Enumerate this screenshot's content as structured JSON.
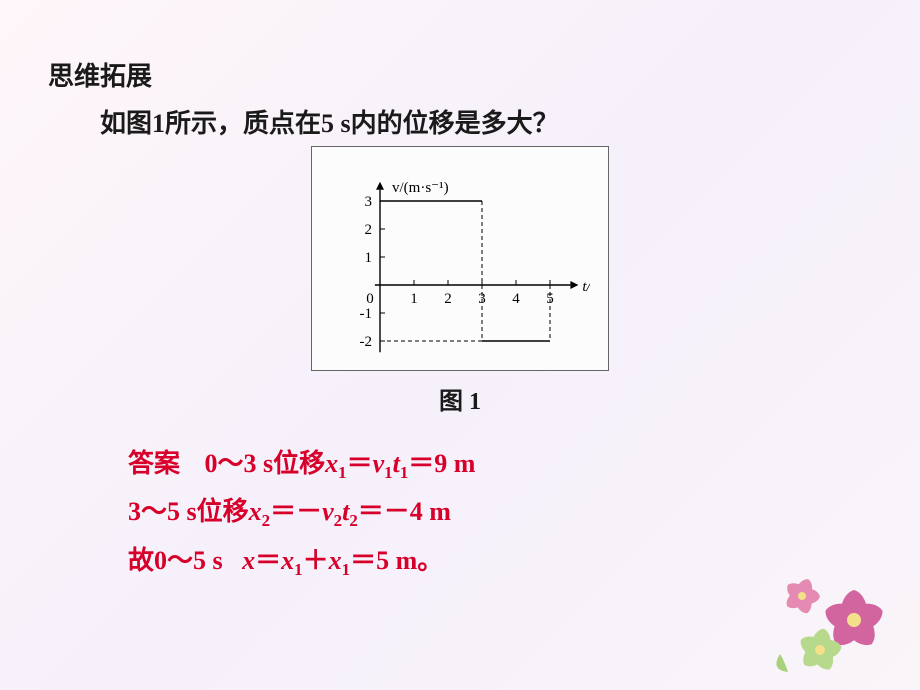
{
  "heading": "思维拓展",
  "question": "如图1所示，质点在5 s内的位移是多大？",
  "figure_label": "图 1",
  "chart": {
    "type": "line-step",
    "y_label": "v/(m·s⁻¹)",
    "x_label": "t/s",
    "x_ticks": [
      0,
      1,
      2,
      3,
      4,
      5
    ],
    "y_ticks": [
      -2,
      -1,
      0,
      1,
      2,
      3
    ],
    "xlim": [
      0,
      5.6
    ],
    "ylim": [
      -2.4,
      3.4
    ],
    "axis_color": "#000000",
    "grid_color": "#000000",
    "dash_color": "#000000",
    "background_color": "#fdfcfc",
    "border_color": "#666666",
    "label_fontsize": 15,
    "tick_fontsize": 15,
    "line_width": 1.6,
    "segments": [
      {
        "from": [
          0,
          3
        ],
        "to": [
          3,
          3
        ],
        "style": "solid"
      },
      {
        "from": [
          3,
          -2
        ],
        "to": [
          5,
          -2
        ],
        "style": "solid"
      }
    ],
    "dashed": [
      {
        "from": [
          3,
          3
        ],
        "to": [
          3,
          -2
        ]
      },
      {
        "from": [
          0,
          -2
        ],
        "to": [
          3,
          -2
        ]
      },
      {
        "from": [
          5,
          0
        ],
        "to": [
          5,
          -2
        ]
      }
    ]
  },
  "answer": {
    "label": "答案",
    "line1_a": "0～3 s位移",
    "line1_b": "＝",
    "line1_c": "＝9 m",
    "line2_a": "3～5 s位移",
    "line2_b": "＝－",
    "line2_c": "＝－4 m",
    "line3_a": "故0～5 s",
    "line3_b": "＝",
    "line3_c": "＋",
    "line3_d": "＝5 m。"
  },
  "sym": {
    "x": "x",
    "v": "v",
    "t": "t",
    "s1": "1",
    "s2": "2"
  },
  "flower": {
    "petal_colors": [
      "#e58bb3",
      "#d265a0",
      "#b7d98c",
      "#9cc96b"
    ],
    "center_color": "#f4e08a",
    "leaf_color": "#a9d07a"
  }
}
